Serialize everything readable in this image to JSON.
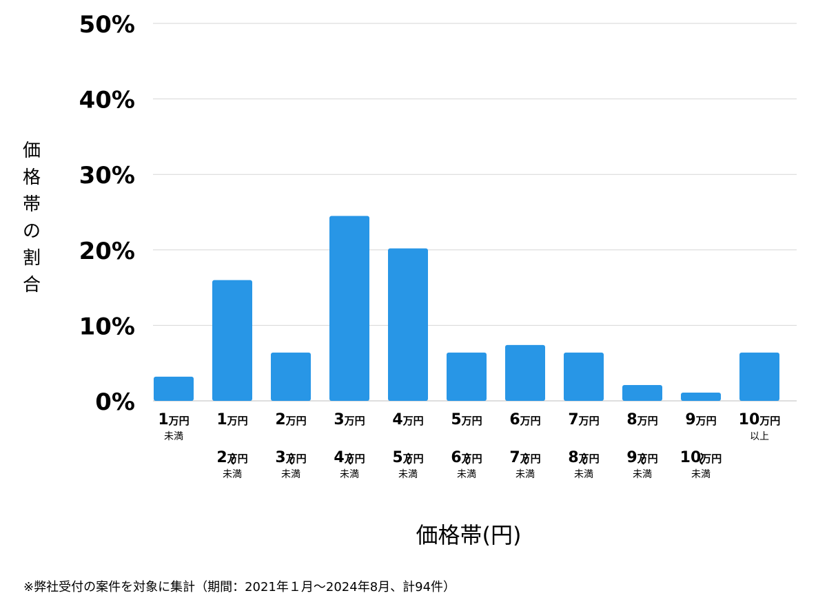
{
  "chart_data": {
    "type": "bar",
    "title": "",
    "ylabel": "価格帯の割合",
    "xlabel": "価格帯(円)",
    "ylim": [
      0,
      50
    ],
    "yticks": [
      "0%",
      "10%",
      "20%",
      "30%",
      "40%",
      "50%"
    ],
    "grid": true,
    "bar_color": "#2896e6",
    "categories": [
      {
        "lines": [
          "1万円"
        ],
        "note": "未満"
      },
      {
        "lines": [
          "1万円",
          "〜",
          "2万円"
        ],
        "note": "未満"
      },
      {
        "lines": [
          "2万円",
          "〜",
          "3万円"
        ],
        "note": "未満"
      },
      {
        "lines": [
          "3万円",
          "〜",
          "4万円"
        ],
        "note": "未満"
      },
      {
        "lines": [
          "4万円",
          "〜",
          "5万円"
        ],
        "note": "未満"
      },
      {
        "lines": [
          "5万円",
          "〜",
          "6万円"
        ],
        "note": "未満"
      },
      {
        "lines": [
          "6万円",
          "〜",
          "7万円"
        ],
        "note": "未満"
      },
      {
        "lines": [
          "7万円",
          "〜",
          "8万円"
        ],
        "note": "未満"
      },
      {
        "lines": [
          "8万円",
          "〜",
          "9万円"
        ],
        "note": "未満"
      },
      {
        "lines": [
          "9万円",
          "〜",
          "10万円"
        ],
        "note": "未満"
      },
      {
        "lines": [
          "10万円"
        ],
        "note": "以上"
      }
    ],
    "values": [
      3.2,
      16.0,
      6.4,
      24.5,
      20.2,
      6.4,
      7.4,
      6.4,
      2.1,
      1.1,
      6.4
    ]
  },
  "footnote": "※弊社受付の案件を対象に集計（期間：2021年１月〜2024年8月、計94件）"
}
